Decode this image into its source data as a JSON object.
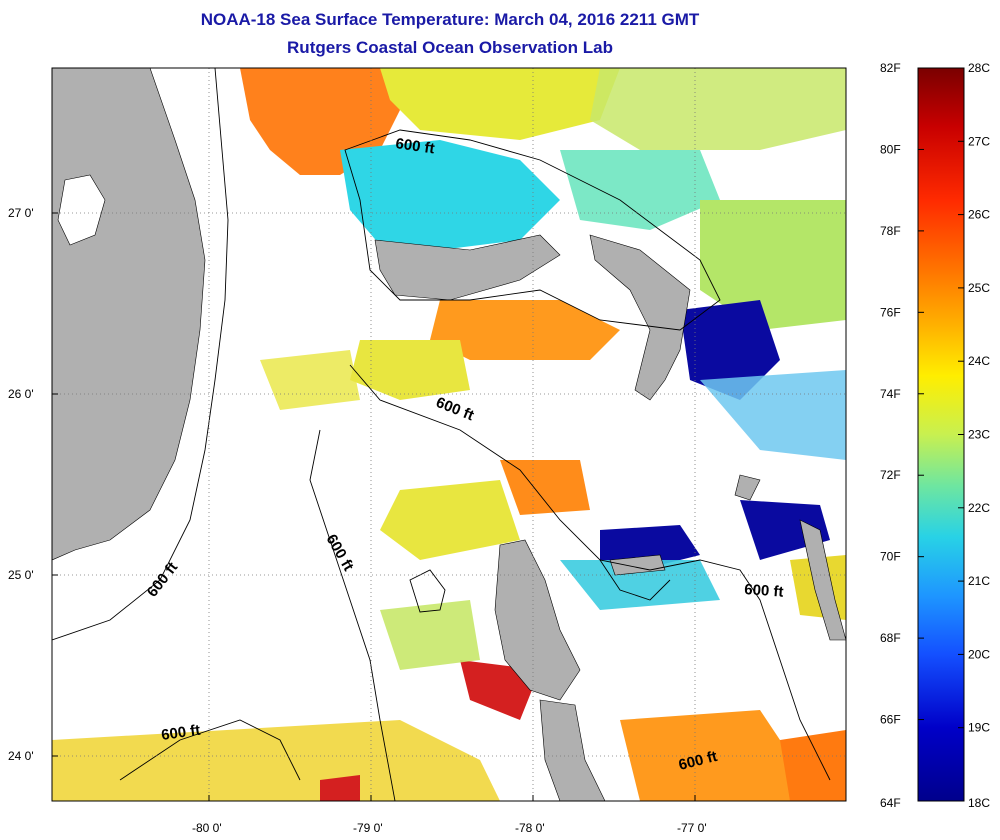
{
  "title": {
    "line1": "NOAA-18 Sea Surface Temperature:  March 04, 2016 2211 GMT",
    "line2": "Rutgers Coastal Ocean Observation Lab"
  },
  "axes": {
    "lon_labels": [
      "-80 0'",
      "-79 0'",
      "-78 0'",
      "-77 0'"
    ],
    "lat_labels": [
      "27 0'",
      "26 0'",
      "25 0'",
      "24 0'"
    ]
  },
  "contour_labels": [
    "600 ft",
    "600 ft",
    "600 ft",
    "600 ft",
    "600 ft",
    "600 ft",
    "600 ft"
  ],
  "colorbar": {
    "f_labels": [
      "82F",
      "80F",
      "78F",
      "76F",
      "74F",
      "72F",
      "70F",
      "68F",
      "66F",
      "64F"
    ],
    "c_labels": [
      "28C",
      "27C",
      "26C",
      "25C",
      "24C",
      "23C",
      "22C",
      "21C",
      "20C",
      "19C",
      "18C"
    ],
    "colors": [
      "#7a0000",
      "#c80000",
      "#ff2a00",
      "#ff7800",
      "#ffb000",
      "#ffee00",
      "#c8f050",
      "#6ee6a0",
      "#28d2e6",
      "#1e96ff",
      "#1450ff",
      "#0000c8",
      "#00008c"
    ]
  },
  "colors": {
    "land": "#b0b0b0",
    "title": "#1a1aa6",
    "background": "#ffffff"
  }
}
